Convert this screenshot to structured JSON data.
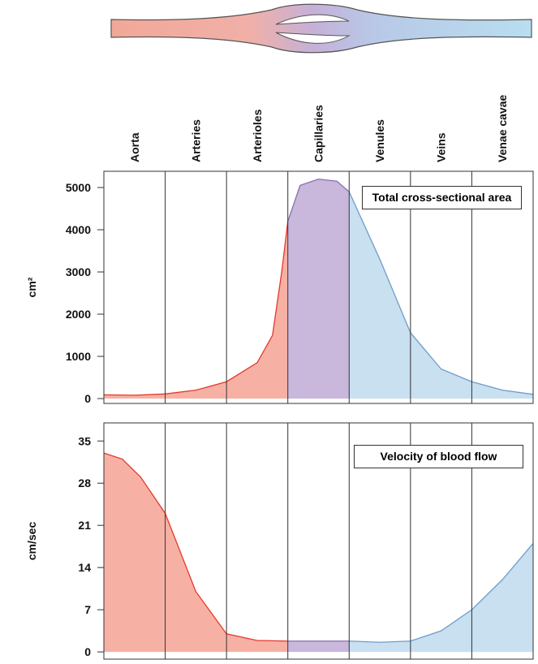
{
  "chart_data": [
    {
      "type": "area",
      "categories": [
        "Aorta",
        "Arteries",
        "Arterioles",
        "Capillaries",
        "Venules",
        "Veins",
        "Venae cavae"
      ],
      "ylabel": "cm²",
      "annotation": "Total cross-sectional area",
      "xlim": [
        0,
        7
      ],
      "ylim": [
        -115,
        5385
      ],
      "yticks": [
        0,
        1000,
        2000,
        3000,
        4000,
        5000
      ],
      "series": [
        {
          "color": "#e5392a",
          "x": [
            0,
            0.5,
            1,
            1.5,
            2,
            2.5,
            2.75,
            2.9,
            3
          ],
          "values": [
            90,
            80,
            110,
            200,
            400,
            850,
            1500,
            3000,
            4200
          ]
        },
        {
          "color": "#8a6fb0",
          "x": [
            3,
            3.2,
            3.5,
            3.8,
            4
          ],
          "values": [
            4200,
            5050,
            5200,
            5150,
            4900
          ]
        },
        {
          "color": "#6f9ccc",
          "x": [
            4,
            4.5,
            5,
            5.5,
            6,
            6.5,
            7
          ],
          "values": [
            4900,
            3300,
            1560,
            700,
            400,
            200,
            100
          ]
        }
      ]
    },
    {
      "type": "area",
      "ylabel": "cm/sec",
      "annotation": "Velocity of blood flow",
      "xlim": [
        0,
        7
      ],
      "ylim": [
        -1.2,
        38
      ],
      "yticks": [
        0,
        7,
        14,
        21,
        28,
        35
      ],
      "series": [
        {
          "color": "#e5392a",
          "x": [
            0,
            0.3,
            0.6,
            1,
            1.5,
            2,
            2.5,
            3
          ],
          "values": [
            33,
            32,
            29,
            23,
            10,
            3,
            1.9,
            1.8
          ]
        },
        {
          "color": "#8a6fb0",
          "x": [
            3,
            4
          ],
          "values": [
            1.8,
            1.8
          ]
        },
        {
          "color": "#6f9ccc",
          "x": [
            4,
            4.5,
            5,
            5.5,
            6,
            6.5,
            7
          ],
          "values": [
            1.8,
            1.6,
            1.8,
            3.5,
            7,
            12,
            18
          ]
        }
      ]
    }
  ]
}
